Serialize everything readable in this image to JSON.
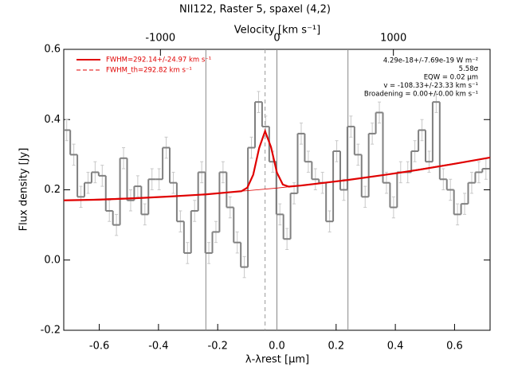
{
  "chart_data": {
    "type": "step",
    "title": "NII122, Raster 5, spaxel (4,2)",
    "xlabel": "λ-λrest [μm]",
    "ylabel": "Flux density [Jy]",
    "x2label": "Velocity [km s⁻¹]",
    "xlim": [
      -0.72,
      0.72
    ],
    "ylim": [
      -0.2,
      0.6
    ],
    "x2lim": [
      -1830,
      1830
    ],
    "xticks": [
      -0.6,
      -0.4,
      -0.2,
      {
        "value": 0,
        "label": "0.0"
      },
      0.2,
      0.4,
      0.6
    ],
    "yticks": [
      -0.2,
      {
        "value": 0,
        "label": "0.0"
      },
      0.2,
      0.4,
      0.6
    ],
    "x2ticks": [
      -1000,
      0,
      1000
    ],
    "vlines": [
      -0.24,
      0,
      0.24
    ],
    "dashed_vline": -0.04,
    "spectrum": {
      "color": "#808080",
      "x": [
        -0.71,
        -0.686,
        -0.662,
        -0.638,
        -0.614,
        -0.59,
        -0.566,
        -0.542,
        -0.518,
        -0.494,
        -0.47,
        -0.446,
        -0.422,
        -0.398,
        -0.374,
        -0.35,
        -0.326,
        -0.302,
        -0.278,
        -0.254,
        -0.23,
        -0.206,
        -0.182,
        -0.158,
        -0.134,
        -0.11,
        -0.086,
        -0.062,
        -0.038,
        -0.014,
        0.01,
        0.034,
        0.058,
        0.082,
        0.106,
        0.13,
        0.154,
        0.178,
        0.202,
        0.226,
        0.25,
        0.274,
        0.298,
        0.322,
        0.346,
        0.37,
        0.394,
        0.418,
        0.442,
        0.466,
        0.49,
        0.514,
        0.538,
        0.562,
        0.586,
        0.61,
        0.634,
        0.658,
        0.682,
        0.706
      ],
      "values": [
        0.37,
        0.3,
        0.18,
        0.22,
        0.25,
        0.24,
        0.14,
        0.1,
        0.29,
        0.17,
        0.21,
        0.13,
        0.23,
        0.23,
        0.32,
        0.22,
        0.11,
        0.02,
        0.14,
        0.25,
        0.02,
        0.08,
        0.25,
        0.15,
        0.05,
        -0.02,
        0.32,
        0.45,
        0.38,
        0.28,
        0.13,
        0.06,
        0.19,
        0.36,
        0.28,
        0.23,
        0.22,
        0.11,
        0.31,
        0.2,
        0.38,
        0.3,
        0.18,
        0.36,
        0.42,
        0.22,
        0.15,
        0.25,
        0.25,
        0.31,
        0.37,
        0.28,
        0.45,
        0.23,
        0.2,
        0.13,
        0.16,
        0.22,
        0.25,
        0.26
      ],
      "errors": [
        0.03,
        0.03,
        0.03,
        0.03,
        0.03,
        0.03,
        0.03,
        0.03,
        0.03,
        0.03,
        0.03,
        0.03,
        0.03,
        0.03,
        0.03,
        0.03,
        0.03,
        0.03,
        0.03,
        0.03,
        0.03,
        0.03,
        0.03,
        0.03,
        0.03,
        0.03,
        0.03,
        0.03,
        0.03,
        0.03,
        0.03,
        0.03,
        0.03,
        0.03,
        0.03,
        0.03,
        0.03,
        0.03,
        0.03,
        0.03,
        0.03,
        0.03,
        0.03,
        0.03,
        0.03,
        0.03,
        0.03,
        0.03,
        0.03,
        0.03,
        0.03,
        0.03,
        0.03,
        0.03,
        0.03,
        0.03,
        0.03,
        0.03,
        0.03,
        0.03
      ]
    },
    "series": [
      {
        "name": "FWHM=292.14+/-24.97 km s⁻¹",
        "color": "#e00000",
        "style": "solid",
        "x": [
          -0.72,
          -0.6,
          -0.48,
          -0.36,
          -0.24,
          -0.16,
          -0.12,
          -0.1,
          -0.08,
          -0.06,
          -0.04,
          -0.02,
          0,
          0.02,
          0.04,
          0.08,
          0.16,
          0.24,
          0.36,
          0.48,
          0.6,
          0.72
        ],
        "values": [
          0.17,
          0.172,
          0.176,
          0.181,
          0.187,
          0.193,
          0.196,
          0.206,
          0.243,
          0.319,
          0.367,
          0.322,
          0.249,
          0.215,
          0.209,
          0.212,
          0.22,
          0.228,
          0.242,
          0.257,
          0.274,
          0.292
        ]
      },
      {
        "name": "FWHM_th=292.82 km s⁻¹",
        "color": "#e00000",
        "style": "dashed",
        "x": [
          -0.72,
          -0.36,
          -0.24,
          -0.12,
          0,
          0.12,
          0.24,
          0.36,
          0.72
        ],
        "values": [
          0.17,
          0.181,
          0.187,
          0.196,
          0.205,
          0.216,
          0.228,
          0.242,
          0.292
        ]
      }
    ],
    "annotations": [
      "4.29e-18+/-7.69e-19 W m⁻²",
      "5.58σ",
      "EQW = 0.02 μm",
      "v = -108.33+/-23.33 km s⁻¹",
      "Broadening = 0.00+/-0.00 km s⁻¹"
    ]
  }
}
